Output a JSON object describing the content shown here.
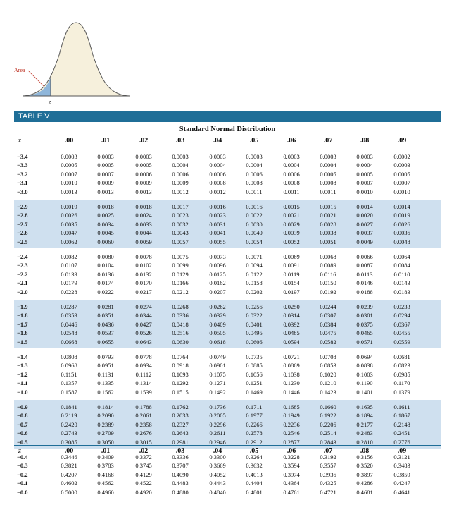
{
  "figure": {
    "area_label": "Area",
    "z_label": "z"
  },
  "table_label": "TABLE V",
  "table_title": "Standard Normal Distribution",
  "z_header": "z",
  "columns": [
    ".00",
    ".01",
    ".02",
    ".03",
    ".04",
    ".05",
    ".06",
    ".07",
    ".08",
    ".09"
  ],
  "blocks": [
    {
      "shaded": false,
      "rows": [
        {
          "z": "−3.4",
          "values": [
            "0.0003",
            "0.0003",
            "0.0003",
            "0.0003",
            "0.0003",
            "0.0003",
            "0.0003",
            "0.0003",
            "0.0003",
            "0.0002"
          ]
        },
        {
          "z": "−3.3",
          "values": [
            "0.0005",
            "0.0005",
            "0.0005",
            "0.0004",
            "0.0004",
            "0.0004",
            "0.0004",
            "0.0004",
            "0.0004",
            "0.0003"
          ]
        },
        {
          "z": "−3.2",
          "values": [
            "0.0007",
            "0.0007",
            "0.0006",
            "0.0006",
            "0.0006",
            "0.0006",
            "0.0006",
            "0.0005",
            "0.0005",
            "0.0005"
          ]
        },
        {
          "z": "−3.1",
          "values": [
            "0.0010",
            "0.0009",
            "0.0009",
            "0.0009",
            "0.0008",
            "0.0008",
            "0.0008",
            "0.0008",
            "0.0007",
            "0.0007"
          ]
        },
        {
          "z": "−3.0",
          "values": [
            "0.0013",
            "0.0013",
            "0.0013",
            "0.0012",
            "0.0012",
            "0.0011",
            "0.0011",
            "0.0011",
            "0.0010",
            "0.0010"
          ]
        }
      ]
    },
    {
      "shaded": true,
      "rows": [
        {
          "z": "−2.9",
          "values": [
            "0.0019",
            "0.0018",
            "0.0018",
            "0.0017",
            "0.0016",
            "0.0016",
            "0.0015",
            "0.0015",
            "0.0014",
            "0.0014"
          ]
        },
        {
          "z": "−2.8",
          "values": [
            "0.0026",
            "0.0025",
            "0.0024",
            "0.0023",
            "0.0023",
            "0.0022",
            "0.0021",
            "0.0021",
            "0.0020",
            "0.0019"
          ]
        },
        {
          "z": "−2.7",
          "values": [
            "0.0035",
            "0.0034",
            "0.0033",
            "0.0032",
            "0.0031",
            "0.0030",
            "0.0029",
            "0.0028",
            "0.0027",
            "0.0026"
          ]
        },
        {
          "z": "−2.6",
          "values": [
            "0.0047",
            "0.0045",
            "0.0044",
            "0.0043",
            "0.0041",
            "0.0040",
            "0.0039",
            "0.0038",
            "0.0037",
            "0.0036"
          ]
        },
        {
          "z": "−2.5",
          "values": [
            "0.0062",
            "0.0060",
            "0.0059",
            "0.0057",
            "0.0055",
            "0.0054",
            "0.0052",
            "0.0051",
            "0.0049",
            "0.0048"
          ]
        }
      ]
    },
    {
      "shaded": false,
      "rows": [
        {
          "z": "−2.4",
          "values": [
            "0.0082",
            "0.0080",
            "0.0078",
            "0.0075",
            "0.0073",
            "0.0071",
            "0.0069",
            "0.0068",
            "0.0066",
            "0.0064"
          ]
        },
        {
          "z": "−2.3",
          "values": [
            "0.0107",
            "0.0104",
            "0.0102",
            "0.0099",
            "0.0096",
            "0.0094",
            "0.0091",
            "0.0089",
            "0.0087",
            "0.0084"
          ]
        },
        {
          "z": "−2.2",
          "values": [
            "0.0139",
            "0.0136",
            "0.0132",
            "0.0129",
            "0.0125",
            "0.0122",
            "0.0119",
            "0.0116",
            "0.0113",
            "0.0110"
          ]
        },
        {
          "z": "−2.1",
          "values": [
            "0.0179",
            "0.0174",
            "0.0170",
            "0.0166",
            "0.0162",
            "0.0158",
            "0.0154",
            "0.0150",
            "0.0146",
            "0.0143"
          ]
        },
        {
          "z": "−2.0",
          "values": [
            "0.0228",
            "0.0222",
            "0.0217",
            "0.0212",
            "0.0207",
            "0.0202",
            "0.0197",
            "0.0192",
            "0.0188",
            "0.0183"
          ]
        }
      ]
    },
    {
      "shaded": true,
      "rows": [
        {
          "z": "−1.9",
          "values": [
            "0.0287",
            "0.0281",
            "0.0274",
            "0.0268",
            "0.0262",
            "0.0256",
            "0.0250",
            "0.0244",
            "0.0239",
            "0.0233"
          ]
        },
        {
          "z": "−1.8",
          "values": [
            "0.0359",
            "0.0351",
            "0.0344",
            "0.0336",
            "0.0329",
            "0.0322",
            "0.0314",
            "0.0307",
            "0.0301",
            "0.0294"
          ]
        },
        {
          "z": "−1.7",
          "values": [
            "0.0446",
            "0.0436",
            "0.0427",
            "0.0418",
            "0.0409",
            "0.0401",
            "0.0392",
            "0.0384",
            "0.0375",
            "0.0367"
          ]
        },
        {
          "z": "−1.6",
          "values": [
            "0.0548",
            "0.0537",
            "0.0526",
            "0.0516",
            "0.0505",
            "0.0495",
            "0.0485",
            "0.0475",
            "0.0465",
            "0.0455"
          ]
        },
        {
          "z": "−1.5",
          "values": [
            "0.0668",
            "0.0655",
            "0.0643",
            "0.0630",
            "0.0618",
            "0.0606",
            "0.0594",
            "0.0582",
            "0.0571",
            "0.0559"
          ]
        }
      ]
    },
    {
      "shaded": false,
      "rows": [
        {
          "z": "−1.4",
          "values": [
            "0.0808",
            "0.0793",
            "0.0778",
            "0.0764",
            "0.0749",
            "0.0735",
            "0.0721",
            "0.0708",
            "0.0694",
            "0.0681"
          ]
        },
        {
          "z": "−1.3",
          "values": [
            "0.0968",
            "0.0951",
            "0.0934",
            "0.0918",
            "0.0901",
            "0.0885",
            "0.0869",
            "0.0853",
            "0.0838",
            "0.0823"
          ]
        },
        {
          "z": "−1.2",
          "values": [
            "0.1151",
            "0.1131",
            "0.1112",
            "0.1093",
            "0.1075",
            "0.1056",
            "0.1038",
            "0.1020",
            "0.1003",
            "0.0985"
          ]
        },
        {
          "z": "−1.1",
          "values": [
            "0.1357",
            "0.1335",
            "0.1314",
            "0.1292",
            "0.1271",
            "0.1251",
            "0.1230",
            "0.1210",
            "0.1190",
            "0.1170"
          ]
        },
        {
          "z": "−1.0",
          "values": [
            "0.1587",
            "0.1562",
            "0.1539",
            "0.1515",
            "0.1492",
            "0.1469",
            "0.1446",
            "0.1423",
            "0.1401",
            "0.1379"
          ]
        }
      ]
    },
    {
      "shaded": true,
      "rows": [
        {
          "z": "−0.9",
          "values": [
            "0.1841",
            "0.1814",
            "0.1788",
            "0.1762",
            "0.1736",
            "0.1711",
            "0.1685",
            "0.1660",
            "0.1635",
            "0.1611"
          ]
        },
        {
          "z": "−0.8",
          "values": [
            "0.2119",
            "0.2090",
            "0.2061",
            "0.2033",
            "0.2005",
            "0.1977",
            "0.1949",
            "0.1922",
            "0.1894",
            "0.1867"
          ]
        },
        {
          "z": "−0.7",
          "values": [
            "0.2420",
            "0.2389",
            "0.2358",
            "0.2327",
            "0.2296",
            "0.2266",
            "0.2236",
            "0.2206",
            "0.2177",
            "0.2148"
          ]
        },
        {
          "z": "−0.6",
          "values": [
            "0.2743",
            "0.2709",
            "0.2676",
            "0.2643",
            "0.2611",
            "0.2578",
            "0.2546",
            "0.2514",
            "0.2483",
            "0.2451"
          ]
        },
        {
          "z": "−0.5",
          "values": [
            "0.3085",
            "0.3050",
            "0.3015",
            "0.2981",
            "0.2946",
            "0.2912",
            "0.2877",
            "0.2843",
            "0.2810",
            "0.2776"
          ]
        }
      ]
    },
    {
      "shaded": false,
      "rows": [
        {
          "z": "−0.4",
          "values": [
            "0.3446",
            "0.3409",
            "0.3372",
            "0.3336",
            "0.3300",
            "0.3264",
            "0.3228",
            "0.3192",
            "0.3156",
            "0.3121"
          ]
        },
        {
          "z": "−0.3",
          "values": [
            "0.3821",
            "0.3783",
            "0.3745",
            "0.3707",
            "0.3669",
            "0.3632",
            "0.3594",
            "0.3557",
            "0.3520",
            "0.3483"
          ]
        },
        {
          "z": "−0.2",
          "values": [
            "0.4207",
            "0.4168",
            "0.4129",
            "0.4090",
            "0.4052",
            "0.4013",
            "0.3974",
            "0.3936",
            "0.3897",
            "0.3859"
          ]
        },
        {
          "z": "−0.1",
          "values": [
            "0.4602",
            "0.4562",
            "0.4522",
            "0.4483",
            "0.4443",
            "0.4404",
            "0.4364",
            "0.4325",
            "0.4286",
            "0.4247"
          ]
        },
        {
          "z": "−0.0",
          "values": [
            "0.5000",
            "0.4960",
            "0.4920",
            "0.4880",
            "0.4840",
            "0.4801",
            "0.4761",
            "0.4721",
            "0.4681",
            "0.4641"
          ]
        }
      ]
    }
  ],
  "colors": {
    "header_bar": "#1f6e97",
    "shaded_band": "#cfe0ef",
    "curve_fill": "#f6f0dc",
    "area_fill": "#8fb6da"
  }
}
